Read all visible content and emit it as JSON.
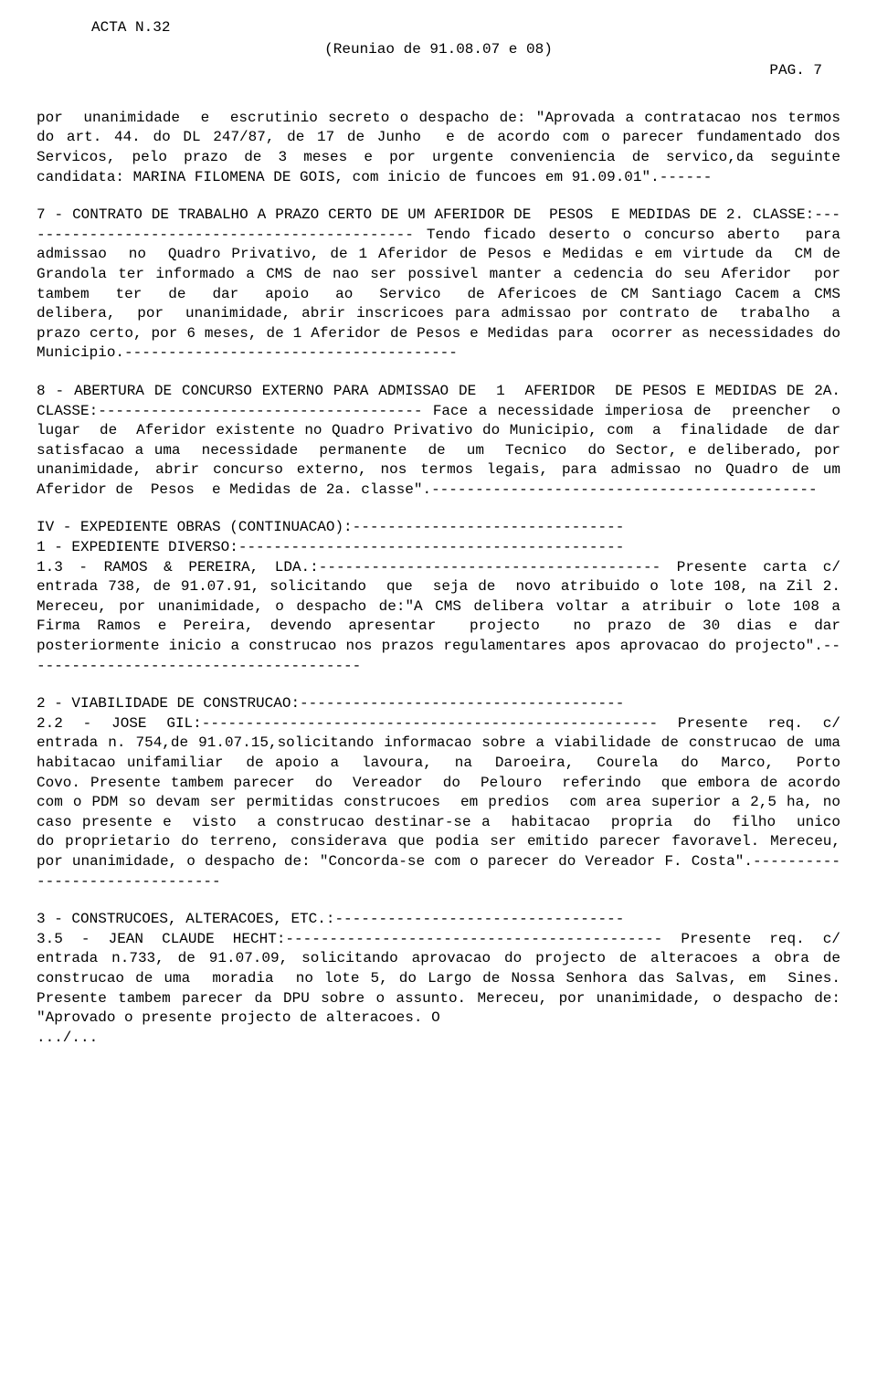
{
  "header": {
    "acta": "ACTA N.32",
    "reuniao": "(Reuniao de 91.08.07 e 08)",
    "pag": "PAG.  7"
  },
  "paragraphs": {
    "p1": "por  unanimidade  e  escrutinio secreto o despacho de: \"Aprovada a contratacao nos termos do art. 44. do DL 247/87, de 17 de Junho  e de acordo com o parecer fundamentado dos Servicos, pelo prazo de 3 meses e por urgente conveniencia de servico,da seguinte candidata: MARINA FILOMENA DE GOIS, com inicio de funcoes em 91.09.01\".------",
    "p2": "7 - CONTRATO DE TRABALHO A PRAZO CERTO DE UM AFERIDOR DE  PESOS  E MEDIDAS DE 2. CLASSE:---------------------------------------------- Tendo ficado deserto o concurso aberto  para  admissao  no  Quadro Privativo, de 1 Aferidor de Pesos e Medidas e em virtude da  CM de Grandola ter informado a CMS de nao ser possivel manter a cedencia do seu Aferidor  por  tambem  ter  de  dar  apoio  ao  Servico  de Afericoes de CM Santiago Cacem a CMS  delibera,  por  unanimidade, abrir inscricoes para admissao por contrato de  trabalho  a  prazo certo, por 6 meses, de 1 Aferidor de Pesos e Medidas para  ocorrer as necessidades do Municipio.--------------------------------------",
    "p3": "8 - ABERTURA DE CONCURSO EXTERNO PARA ADMISSAO DE  1  AFERIDOR  DE PESOS E MEDIDAS DE 2A. CLASSE:------------------------------------- Face a necessidade imperiosa de  preencher  o  lugar  de  Aferidor existente no Quadro Privativo do Municipio, com  a  finalidade  de dar satisfacao a uma  necessidade  permanente  de  um  Tecnico  do Sector, e deliberado, por unanimidade, abrir concurso externo, nos termos legais, para admissao no Quadro de um Aferidor de  Pesos  e Medidas de 2a. classe\".--------------------------------------------",
    "p4": "IV - EXPEDIENTE OBRAS (CONTINUACAO):-------------------------------\n1 - EXPEDIENTE DIVERSO:-------------------------------------------- \n1.3 - RAMOS & PEREIRA, LDA.:--------------------------------------- Presente carta c/ entrada 738, de 91.07.91, solicitando  que  seja de  novo atribuido o lote 108, na Zil 2. Mereceu, por unanimidade, o despacho de:\"A CMS delibera voltar a atribuir o lote 108 a Firma Ramos e Pereira, devendo apresentar  projecto  no prazo de 30 dias e dar posteriormente inicio a construcao nos prazos regulamentares apos aprovacao do projecto\".---------------------------------------",
    "p5": "2 - VIABILIDADE DE CONSTRUCAO:-------------------------------------\n2.2 - JOSE GIL:---------------------------------------------------- Presente req. c/ entrada n. 754,de 91.07.15,solicitando informacao sobre a viabilidade de construcao de uma habitacao unifamiliar  de apoio a  lavoura,  na  Daroeira,  Courela  do  Marco,  Porto  Covo. Presente tambem parecer  do  Vereador  do  Pelouro  referindo  que embora de acordo com o PDM so devam ser permitidas construcoes  em predios  com area superior a 2,5 ha, no caso presente e  visto  a construcao destinar-se a  habitacao  propria  do  filho  unico  do proprietario do terreno, considerava que podia ser emitido parecer favoravel. Mereceu, por unanimidade, o despacho de: \"Concorda-se com o parecer do Vereador F. Costa\".-------------------------------",
    "p6": "3 - CONSTRUCOES, ALTERACOES, ETC.:---------------------------------\n3.5 - JEAN CLAUDE HECHT:------------------------------------------- Presente req. c/ entrada n.733, de 91.07.09, solicitando aprovacao do projecto de alteracoes a obra de construcao de uma  moradia  no lote 5, do Largo de Nossa Senhora das Salvas, em  Sines.  Presente tambem parecer da DPU sobre o assunto. Mereceu, por unanimidade, o despacho de: \"Aprovado o presente projecto de alteracoes. O\n.../..."
  }
}
